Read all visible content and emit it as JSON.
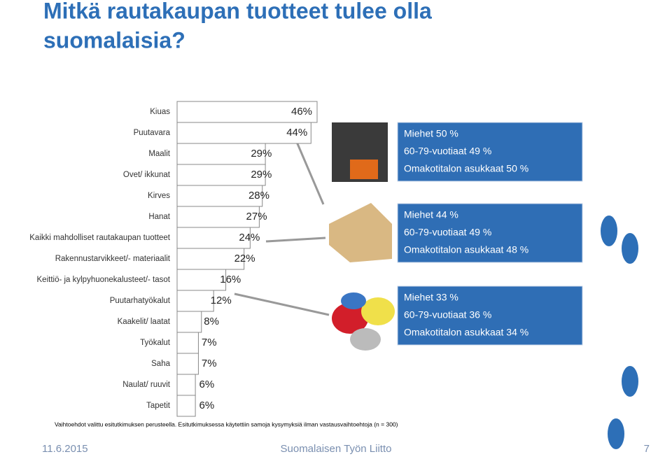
{
  "title": "Mitkä rautakaupan tuotteet tulee olla suomalaisia?",
  "chart_data": {
    "type": "bar",
    "orientation": "horizontal",
    "color": "#ffffff",
    "categories": [
      "Kiuas",
      "Puutavara",
      "Maalit",
      "Ovet/ ikkunat",
      "Kirves",
      "Hanat",
      "Kaikki mahdolliset rautakaupan tuotteet",
      "Rakennustarvikkeet/- materiaalit",
      "Keittiö- ja kylpyhuonekalusteet/- tasot",
      "Puutarhatyökalut",
      "Kaakelit/ laatat",
      "Työkalut",
      "Saha",
      "Naulat/ ruuvit",
      "Tapetit"
    ],
    "values": [
      46,
      44,
      29,
      29,
      28,
      27,
      24,
      22,
      16,
      12,
      8,
      7,
      7,
      6,
      6
    ],
    "value_labels": [
      "46%",
      "44%",
      "29%",
      "29%",
      "28%",
      "27%",
      "24%",
      "22%",
      "16%",
      "12%",
      "8%",
      "7%",
      "7%",
      "6%",
      "6%"
    ]
  },
  "callouts": [
    {
      "lines": [
        "Miehet 50 %",
        "60-79-vuotiaat 49 %",
        "Omakotitalon asukkaat 50 %"
      ]
    },
    {
      "lines": [
        "Miehet 44 %",
        "60-79-vuotiaat 49 %",
        "Omakotitalon asukkaat 48 %"
      ]
    },
    {
      "lines": [
        "Miehet 33 %",
        "60-79-vuotiaat 36 %",
        "Omakotitalon asukkaat 34 %"
      ]
    }
  ],
  "footnote": "Vaihtoehdot valittu esitutkimuksen perusteella. Esitutkimuksessa käytettiin samoja kysymyksiä ilman vastausvaihtoehtoja (n = 300)",
  "footer": {
    "date": "11.6.2015",
    "organization": "Suomalaisen Työn Liitto",
    "page": "7"
  }
}
